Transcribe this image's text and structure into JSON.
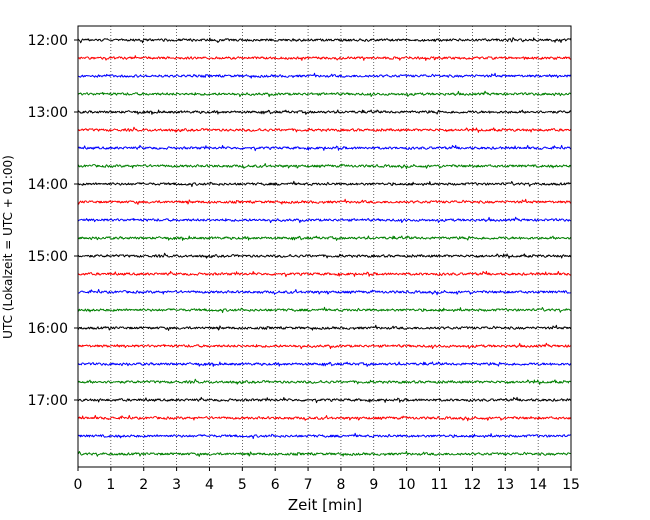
{
  "chart_data": {
    "type": "line",
    "title": "",
    "xlabel": "Zeit  [min]",
    "ylabel": "UTC (Lokalzeit = UTC + 01:00)",
    "xlim": [
      0,
      15
    ],
    "x_ticks": [
      "0",
      "1",
      "2",
      "3",
      "4",
      "5",
      "6",
      "7",
      "8",
      "9",
      "10",
      "11",
      "12",
      "13",
      "14",
      "15"
    ],
    "y_tick_labels": [
      "12:00",
      "13:00",
      "14:00",
      "15:00",
      "16:00",
      "17:00"
    ],
    "grid": "vertical dotted lines at each minute",
    "trace_interval_minutes": 15,
    "traces": [
      {
        "start": "12:00",
        "color": "#000000"
      },
      {
        "start": "12:15",
        "color": "#ff0000"
      },
      {
        "start": "12:30",
        "color": "#0000ff"
      },
      {
        "start": "12:45",
        "color": "#008000"
      },
      {
        "start": "13:00",
        "color": "#000000"
      },
      {
        "start": "13:15",
        "color": "#ff0000"
      },
      {
        "start": "13:30",
        "color": "#0000ff"
      },
      {
        "start": "13:45",
        "color": "#008000"
      },
      {
        "start": "14:00",
        "color": "#000000"
      },
      {
        "start": "14:15",
        "color": "#ff0000"
      },
      {
        "start": "14:30",
        "color": "#0000ff"
      },
      {
        "start": "14:45",
        "color": "#008000"
      },
      {
        "start": "15:00",
        "color": "#000000"
      },
      {
        "start": "15:15",
        "color": "#ff0000"
      },
      {
        "start": "15:30",
        "color": "#0000ff"
      },
      {
        "start": "15:45",
        "color": "#008000"
      },
      {
        "start": "16:00",
        "color": "#000000"
      },
      {
        "start": "16:15",
        "color": "#ff0000"
      },
      {
        "start": "16:30",
        "color": "#0000ff"
      },
      {
        "start": "16:45",
        "color": "#008000"
      },
      {
        "start": "17:00",
        "color": "#000000"
      },
      {
        "start": "17:15",
        "color": "#ff0000"
      },
      {
        "start": "17:30",
        "color": "#0000ff"
      },
      {
        "start": "17:45",
        "color": "#008000"
      }
    ]
  }
}
